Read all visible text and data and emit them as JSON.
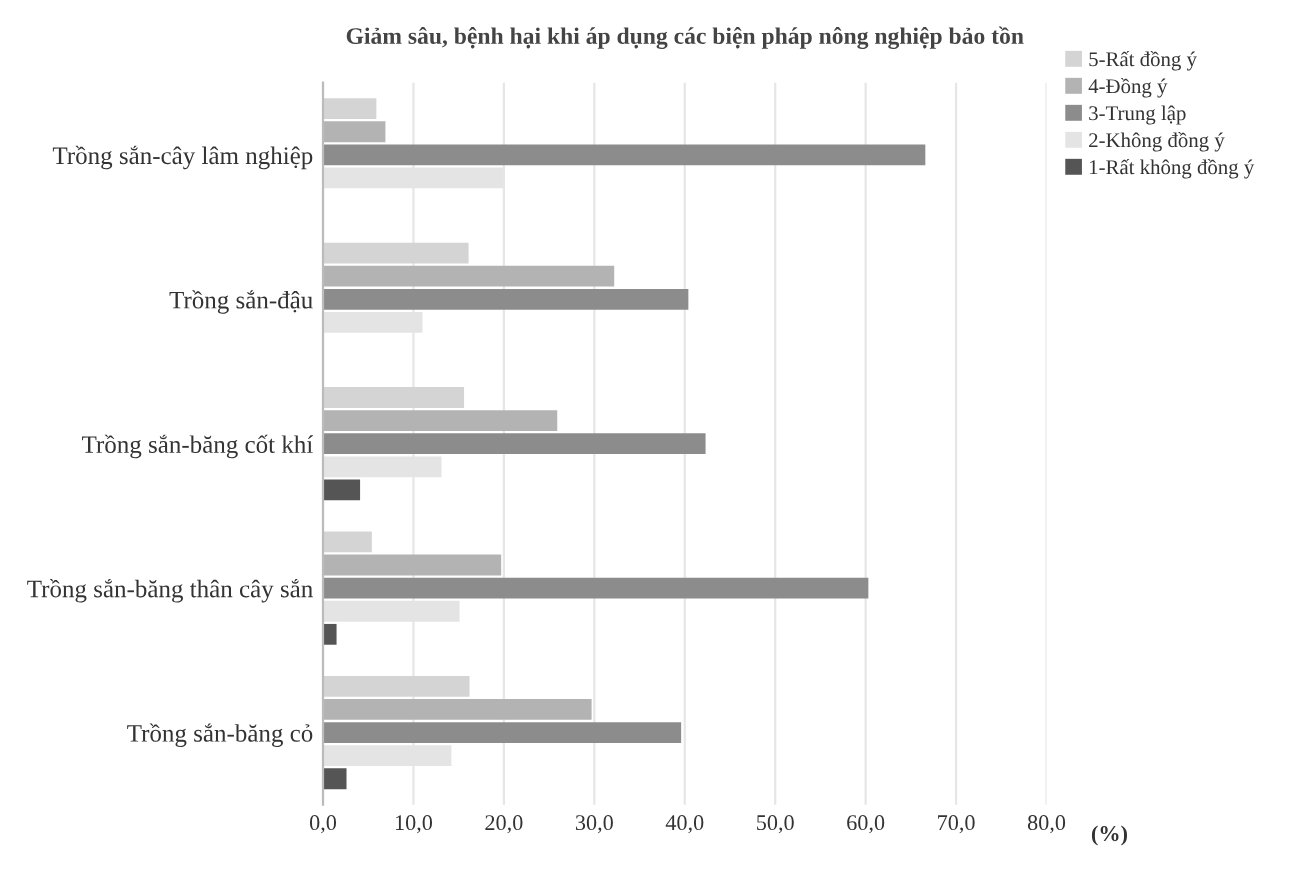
{
  "chart_data": {
    "type": "bar",
    "orientation": "horizontal",
    "title": "Giảm sâu, bệnh hại khi áp dụng các biện pháp nông nghiệp bảo tồn",
    "xlabel": "(%)",
    "categories": [
      "Trồng sắn-cây lâm nghiệp",
      "Trồng sắn-đậu",
      "Trồng sắn-băng cốt khí",
      "Trồng sắn-băng thân cây sắn",
      "Trồng sắn-băng cỏ"
    ],
    "series": [
      {
        "name": "5-Rất đồng ý",
        "color": "#d4d4d4",
        "values": [
          5.9,
          16.1,
          15.6,
          5.4,
          16.2
        ]
      },
      {
        "name": "4-Đồng ý",
        "color": "#b3b3b3",
        "values": [
          6.9,
          32.2,
          25.9,
          19.7,
          29.7
        ]
      },
      {
        "name": "3-Trung lập",
        "color": "#8c8c8c",
        "values": [
          66.6,
          40.4,
          42.3,
          60.3,
          39.6
        ]
      },
      {
        "name": "2-Không đồng ý",
        "color": "#e4e4e4",
        "values": [
          19.9,
          11.0,
          13.1,
          15.1,
          14.2
        ]
      },
      {
        "name": "1-Rất không đồng ý",
        "color": "#555555",
        "values": [
          null,
          null,
          4.1,
          1.5,
          2.6
        ]
      }
    ],
    "xlim": [
      0,
      80
    ],
    "xticks": [
      {
        "value": 0,
        "label": "0,0"
      },
      {
        "value": 10,
        "label": "10,0"
      },
      {
        "value": 20,
        "label": "20,0"
      },
      {
        "value": 30,
        "label": "30,0"
      },
      {
        "value": 40,
        "label": "40,0"
      },
      {
        "value": 50,
        "label": "50,0"
      },
      {
        "value": 60,
        "label": "60,0"
      },
      {
        "value": 70,
        "label": "70,0"
      },
      {
        "value": 80,
        "label": "80,0"
      }
    ],
    "grid": "x",
    "legend": "top right"
  }
}
